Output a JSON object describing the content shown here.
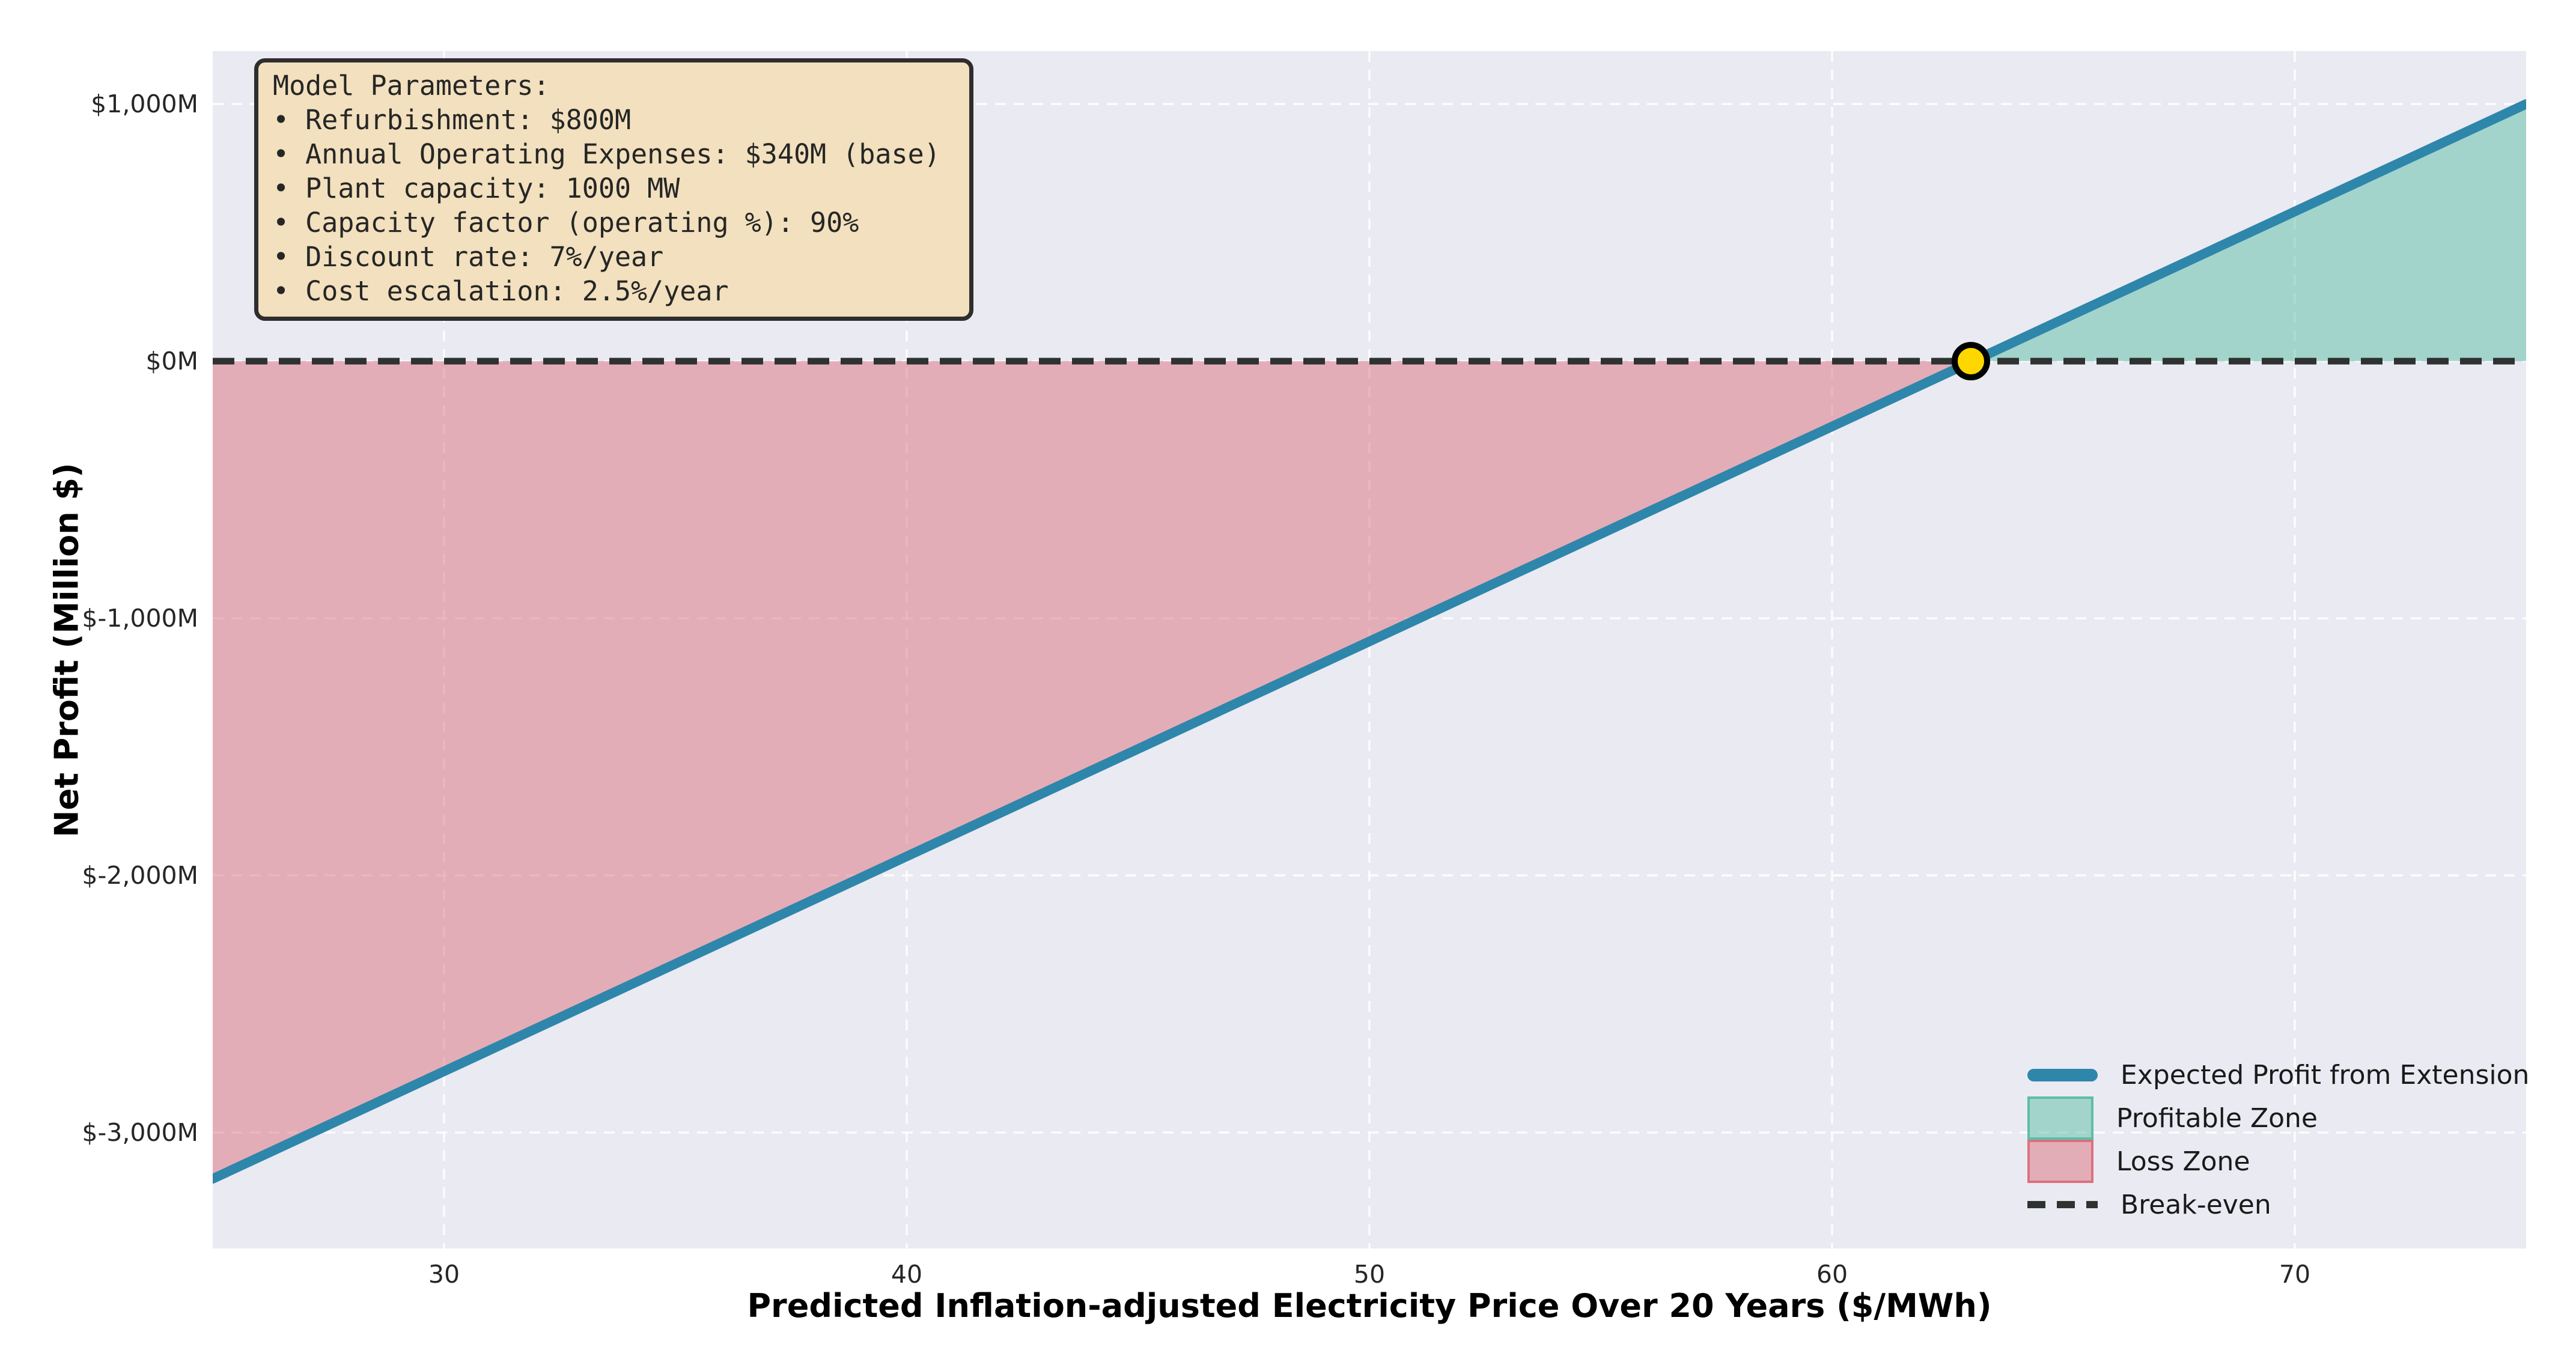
{
  "figure": {
    "background": "#ffffff",
    "plot_background": "#EAEAF2",
    "grid_color": "#FFFFFF"
  },
  "chart_data": {
    "type": "line",
    "title": "",
    "xlabel": "Predicted Inflation-adjusted Electricity Price Over 20 Years ($/MWh)",
    "ylabel": "Net Profit (Million $)",
    "xlim": [
      25,
      75
    ],
    "ylim": [
      -3451,
      1206
    ],
    "grid": true,
    "grid_style": "dashed",
    "legend_position": "lower right",
    "x_ticks": [
      30,
      40,
      50,
      60,
      70
    ],
    "y_ticks": [
      {
        "value": 1000,
        "label": "$1,000M"
      },
      {
        "value": 0,
        "label": "$0M"
      },
      {
        "value": -1000,
        "label": "$-1,000M"
      },
      {
        "value": -2000,
        "label": "$-2,000M"
      },
      {
        "value": -3000,
        "label": "$-3,000M"
      }
    ],
    "series": [
      {
        "name": "Expected Profit from Extension",
        "color": "#2E86AB",
        "line_width": 16,
        "x": [
          25,
          75
        ],
        "y": [
          -3180,
          1000
        ]
      }
    ],
    "break_even": {
      "price": 63.0,
      "profit": 0,
      "line_color": "#2e3231",
      "marker_fill": "#FFD700",
      "marker_edge": "#000000"
    },
    "zones": [
      {
        "name": "Profitable Zone",
        "fill": "rgba(92,190,164,0.5)",
        "edge": "#5CBEA4",
        "region": "above_zero"
      },
      {
        "name": "Loss Zone",
        "fill": "rgba(220,112,126,0.5)",
        "edge": "#DC707E",
        "region": "below_zero"
      }
    ]
  },
  "annotation_box": {
    "title": "Model Parameters:",
    "items": [
      "• Refurbishment: $800M",
      "• Annual Operating Expenses: $340M (base)",
      "• Plant capacity: 1000 MW",
      "• Capacity factor (operating %): 90%",
      "• Discount rate: 7%/year",
      "• Cost escalation: 2.5%/year"
    ],
    "background": "#F2E0BE",
    "border": "#2e2e2e"
  },
  "legend": {
    "items": [
      {
        "label": "Expected Profit from Extension",
        "swatch": "line",
        "color": "#2E86AB"
      },
      {
        "label": "Profitable Zone",
        "swatch": "patch",
        "fill": "rgba(92,190,164,0.5)",
        "edge": "#5CBEA4"
      },
      {
        "label": "Loss Zone",
        "swatch": "patch",
        "fill": "rgba(220,112,126,0.5)",
        "edge": "#DC707E"
      },
      {
        "label": "Break-even",
        "swatch": "dashed-line",
        "color": "#2e3231"
      }
    ]
  }
}
